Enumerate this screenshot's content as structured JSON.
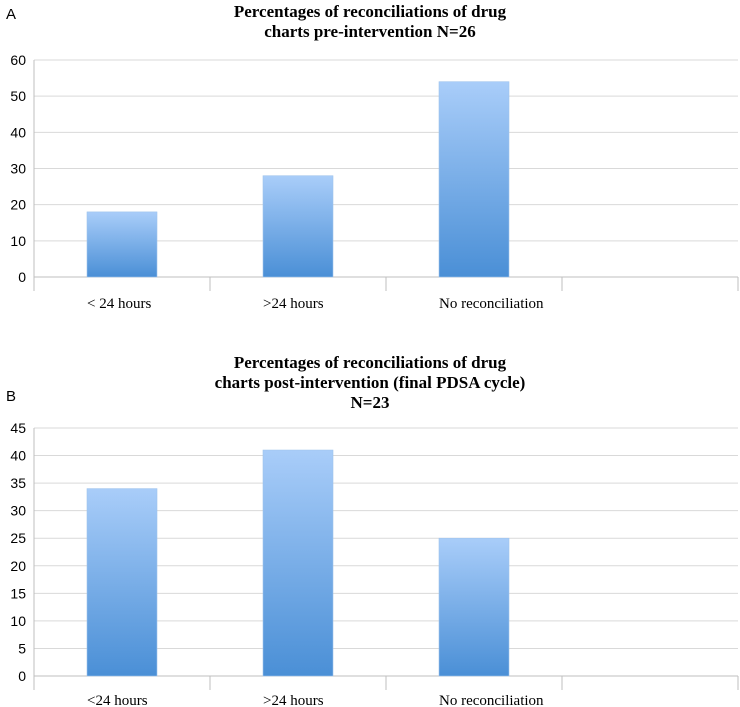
{
  "chart_data": [
    {
      "panel": "A",
      "type": "bar",
      "title_lines": [
        "Percentages of reconciliations of drug",
        "charts pre-intervention N=26"
      ],
      "categories": [
        "< 24 hours",
        ">24 hours",
        "No reconciliation"
      ],
      "values": [
        18,
        28,
        54
      ],
      "ylim": [
        0,
        60
      ],
      "yticks": [
        0,
        10,
        20,
        30,
        40,
        50,
        60
      ],
      "grid": true,
      "colors": {
        "bar_top": "#a9cdf9",
        "bar_bottom": "#4a8fd6",
        "grid": "#d9d9d9",
        "axis": "#bfbfbf"
      }
    },
    {
      "panel": "B",
      "type": "bar",
      "title_lines": [
        "Percentages of reconciliations of drug",
        "charts post-intervention (final PDSA cycle)",
        "N=23"
      ],
      "categories": [
        "<24 hours",
        ">24 hours",
        "No reconciliation"
      ],
      "values": [
        34,
        41,
        25
      ],
      "ylim": [
        0,
        45
      ],
      "yticks": [
        0,
        5,
        10,
        15,
        20,
        25,
        30,
        35,
        40,
        45
      ],
      "grid": true,
      "colors": {
        "bar_top": "#a9cdf9",
        "bar_bottom": "#4a8fd6",
        "grid": "#d9d9d9",
        "axis": "#bfbfbf"
      }
    }
  ]
}
